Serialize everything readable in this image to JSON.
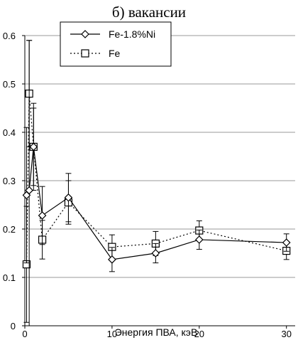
{
  "chart_data": {
    "type": "line",
    "title": "б) вакансии",
    "xlabel": "Энергия ПВА, кэВ",
    "ylabel": "",
    "xlim": [
      0,
      31
    ],
    "ylim": [
      0,
      0.6
    ],
    "xticks": [
      0,
      10,
      20,
      30
    ],
    "yticks": [
      0,
      0.1,
      0.2,
      0.3,
      0.4,
      0.5,
      0.6
    ],
    "ytick_labels": [
      "0",
      "0.1",
      "0.2",
      "0.3",
      "0.4",
      "0.5",
      "0.6"
    ],
    "grid": "horizontal",
    "legend_position": "top-center",
    "series": [
      {
        "name": "Fe-1.8%Ni",
        "marker": "diamond",
        "line_style": "solid",
        "color": "#000000",
        "points": [
          {
            "x": 0.2,
            "y": 0.27,
            "err": 0.14
          },
          {
            "x": 0.5,
            "y": 0.28,
            "err": 0.31
          },
          {
            "x": 1,
            "y": 0.37,
            "err": 0.09
          },
          {
            "x": 2,
            "y": 0.228,
            "err": 0.06
          },
          {
            "x": 5,
            "y": 0.265,
            "err": 0.05
          },
          {
            "x": 10,
            "y": 0.137,
            "err": 0.025
          },
          {
            "x": 15,
            "y": 0.15,
            "err": 0.02
          },
          {
            "x": 20,
            "y": 0.178,
            "err": 0.02
          },
          {
            "x": 30,
            "y": 0.172,
            "err": 0.018
          }
        ]
      },
      {
        "name": "Fe",
        "marker": "square",
        "line_style": "dotted",
        "color": "#000000",
        "points": [
          {
            "x": 0.2,
            "y": 0.127,
            "err": 0.12
          },
          {
            "x": 0.5,
            "y": 0.48,
            "err": 0.11
          },
          {
            "x": 1,
            "y": 0.37,
            "err": 0.08
          },
          {
            "x": 2,
            "y": 0.178,
            "err": 0.04
          },
          {
            "x": 5,
            "y": 0.255,
            "err": 0.045
          },
          {
            "x": 10,
            "y": 0.163,
            "err": 0.025
          },
          {
            "x": 15,
            "y": 0.17,
            "err": 0.025
          },
          {
            "x": 20,
            "y": 0.197,
            "err": 0.02
          },
          {
            "x": 30,
            "y": 0.155,
            "err": 0.018
          }
        ]
      }
    ]
  }
}
